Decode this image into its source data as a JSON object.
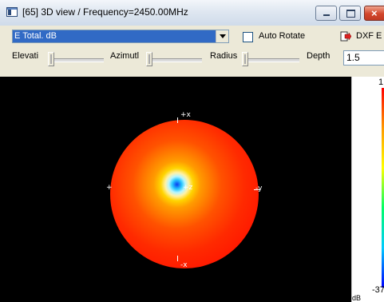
{
  "window": {
    "title": "[65] 3D view / Frequency=2450.00MHz",
    "minimize_icon": "minimize-icon",
    "maximize_icon": "maximize-icon",
    "close_icon": "close-icon",
    "close_glyph": "×"
  },
  "toolbar": {
    "field_select": "E Total. dB",
    "auto_rotate_label": "Auto Rotate",
    "auto_rotate_checked": false,
    "dxf_label": "DXF E",
    "dxf_icon": "export-icon"
  },
  "controls": {
    "elevation_label": "Elevati",
    "azimuth_label": "Azimutl",
    "radius_label": "Radius",
    "depth_label": "Depth",
    "depth_value": "1.5"
  },
  "view": {
    "axes": {
      "px": "+x",
      "mx": "-x",
      "my": "-y",
      "py": "+",
      "pz": "+z"
    }
  },
  "scale": {
    "top_value": "1",
    "bottom_value": "-37",
    "unit": "dB"
  }
}
